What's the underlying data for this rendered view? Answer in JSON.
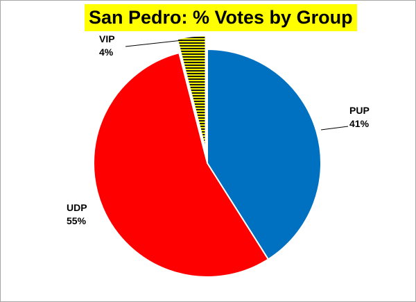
{
  "chart_data": {
    "type": "pie",
    "title": "San Pedro: % Votes by Group",
    "slices": [
      {
        "label": "PUP",
        "value": 41,
        "value_text": "41%",
        "color": "#0070c0",
        "exploded": false
      },
      {
        "label": "UDP",
        "value": 55,
        "value_text": "55%",
        "color": "#ff0000",
        "exploded": false
      },
      {
        "label": "VIP",
        "value": 4,
        "value_text": "4%",
        "color": "#ffff00",
        "pattern": "horizontal-stripes",
        "exploded": true
      }
    ],
    "start_angle": "12 o'clock, clockwise",
    "title_background": "#ffff00",
    "legend": "none, data labels beside slices"
  }
}
